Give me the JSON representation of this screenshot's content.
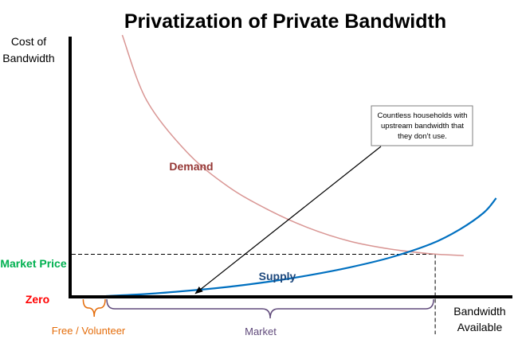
{
  "chart_data": {
    "type": "line",
    "title": "Privatization of Private Bandwidth",
    "ylabel_lines": [
      "Cost of",
      "Bandwidth"
    ],
    "xlabel_lines": [
      "Bandwidth",
      "Available"
    ],
    "y_ticks": [
      {
        "label": "Market Price",
        "value": 0.16,
        "color": "#00b050"
      },
      {
        "label": "Zero",
        "value": 0,
        "color": "#ff0000"
      }
    ],
    "xlim": [
      0,
      1
    ],
    "ylim": [
      0,
      1
    ],
    "series": [
      {
        "name": "Demand",
        "color": "#d99694",
        "label_color": "#953735",
        "points": [
          [
            0.04,
            1.0
          ],
          [
            0.1,
            0.75
          ],
          [
            0.2,
            0.55
          ],
          [
            0.3,
            0.42
          ],
          [
            0.4,
            0.33
          ],
          [
            0.5,
            0.26
          ],
          [
            0.6,
            0.21
          ],
          [
            0.7,
            0.18
          ],
          [
            0.8,
            0.162
          ],
          [
            0.88,
            0.155
          ]
        ]
      },
      {
        "name": "Supply",
        "color": "#0070c0",
        "label_color": "#1f497d",
        "points": [
          [
            0.0,
            0.0
          ],
          [
            0.1,
            0.008
          ],
          [
            0.2,
            0.02
          ],
          [
            0.3,
            0.035
          ],
          [
            0.4,
            0.055
          ],
          [
            0.5,
            0.08
          ],
          [
            0.6,
            0.11
          ],
          [
            0.7,
            0.148
          ],
          [
            0.8,
            0.2
          ],
          [
            0.87,
            0.255
          ],
          [
            0.93,
            0.32
          ],
          [
            0.96,
            0.375
          ]
        ]
      }
    ],
    "market_equilibrium": {
      "x": 0.81,
      "y": 0.16
    },
    "annotations": {
      "callout": {
        "lines": [
          "Countless households with",
          "upstream bandwidth that",
          "they don’t use."
        ],
        "arrow_target": {
          "x": 0.22,
          "y": 0.01
        }
      },
      "braces": [
        {
          "label": "Free / Volunteer",
          "x_start": -0.06,
          "x_end": 0.0,
          "color": "#e46c0a"
        },
        {
          "label": "Market",
          "x_start": 0.0,
          "x_end": 0.81,
          "color": "#604a7b"
        }
      ]
    }
  }
}
